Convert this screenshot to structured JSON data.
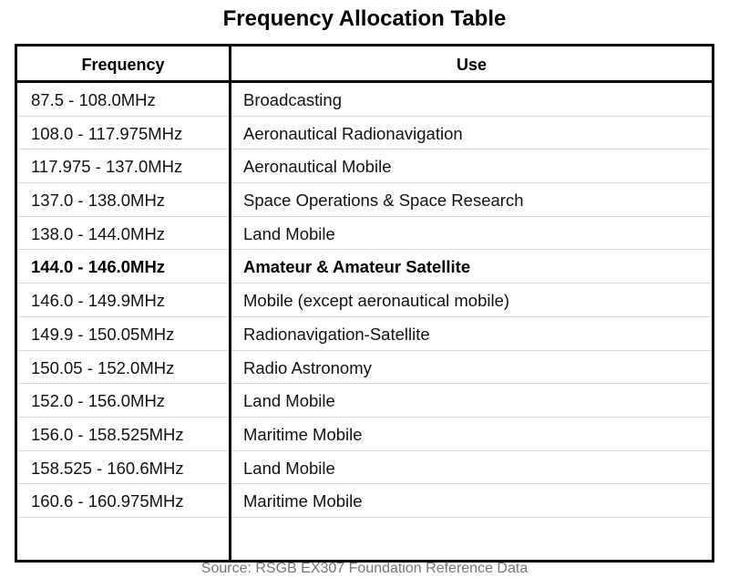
{
  "title": "Frequency Allocation Table",
  "columns": {
    "frequency": "Frequency",
    "use": "Use"
  },
  "rows": [
    {
      "frequency": "87.5 - 108.0MHz",
      "use": "Broadcasting",
      "highlighted": false
    },
    {
      "frequency": "108.0 - 117.975MHz",
      "use": "Aeronautical Radionavigation",
      "highlighted": false
    },
    {
      "frequency": "117.975 - 137.0MHz",
      "use": "Aeronautical Mobile",
      "highlighted": false
    },
    {
      "frequency": "137.0 - 138.0MHz",
      "use": "Space Operations & Space Research",
      "highlighted": false
    },
    {
      "frequency": "138.0 - 144.0MHz",
      "use": "Land Mobile",
      "highlighted": false
    },
    {
      "frequency": "144.0 - 146.0MHz",
      "use": "Amateur & Amateur Satellite",
      "highlighted": true
    },
    {
      "frequency": "146.0 - 149.9MHz",
      "use": "Mobile (except aeronautical mobile)",
      "highlighted": false
    },
    {
      "frequency": "149.9 - 150.05MHz",
      "use": "Radionavigation-Satellite",
      "highlighted": false
    },
    {
      "frequency": "150.05 - 152.0MHz",
      "use": "Radio Astronomy",
      "highlighted": false
    },
    {
      "frequency": "152.0 - 156.0MHz",
      "use": "Land Mobile",
      "highlighted": false
    },
    {
      "frequency": "156.0 - 158.525MHz",
      "use": "Maritime Mobile",
      "highlighted": false
    },
    {
      "frequency": "158.525 - 160.6MHz",
      "use": "Land Mobile",
      "highlighted": false
    },
    {
      "frequency": "160.6 - 160.975MHz",
      "use": "Maritime Mobile",
      "highlighted": false
    }
  ],
  "source": "Source: RSGB EX307 Foundation Reference Data",
  "colors": {
    "border": "#000000",
    "row_divider": "#d8d8d8",
    "source_text": "#777777"
  }
}
